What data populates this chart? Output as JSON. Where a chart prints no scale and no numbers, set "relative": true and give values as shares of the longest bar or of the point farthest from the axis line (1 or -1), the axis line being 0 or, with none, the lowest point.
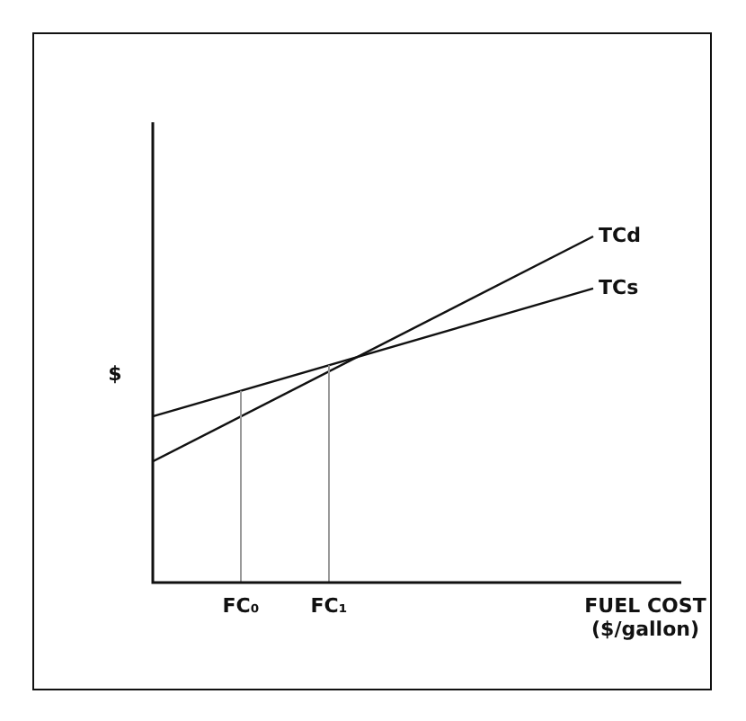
{
  "chart_data": {
    "type": "line",
    "relative": true,
    "ylabel": "$",
    "xlabel": "FUEL COST\n($/gallon)",
    "categories": [
      null,
      null,
      "FC₀",
      null,
      "FC₁",
      null,
      null,
      null,
      null,
      null,
      null,
      null,
      null
    ],
    "series": [
      {
        "name": "TCd",
        "color": "#111111",
        "values": [
          0.35,
          null,
          null,
          null,
          null,
          null,
          null,
          null,
          null,
          null,
          1.0,
          null,
          null
        ]
      },
      {
        "name": "TCs",
        "color": "#111111",
        "values": [
          0.48,
          null,
          null,
          null,
          null,
          null,
          null,
          null,
          null,
          null,
          0.85,
          null,
          null
        ]
      }
    ],
    "ref_lines": [
      {
        "axis": "x",
        "value": "FC₀",
        "color": "#999999"
      },
      {
        "axis": "x",
        "value": "FC₁",
        "color": "#999999"
      }
    ],
    "grid": false,
    "legend": false,
    "marker": "none"
  }
}
